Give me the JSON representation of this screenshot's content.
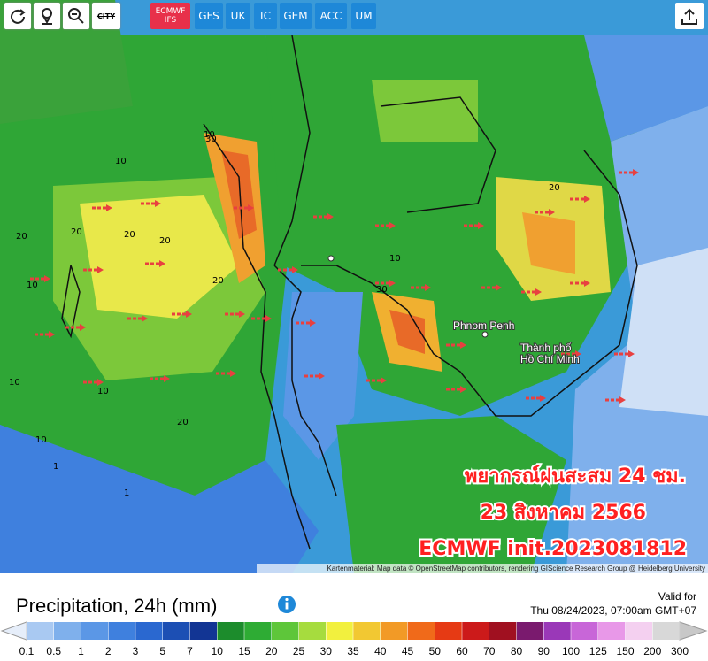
{
  "toolbar": {
    "city_button": "CITY",
    "models": [
      "ECMWF IFS",
      "GFS",
      "UK",
      "IC",
      "GEM",
      "ACC",
      "UM"
    ]
  },
  "map": {
    "place_labels": [
      "Phnom Penh",
      "Thành phố",
      "Hồ Chí Minh"
    ],
    "contour_labels": [
      "10",
      "30",
      "10",
      "20",
      "20",
      "20",
      "20",
      "10",
      "30",
      "20",
      "10",
      "20",
      "10",
      "10",
      "1",
      "1",
      "10",
      "20"
    ],
    "overlay": [
      "พยากรณ์ฝนสะสม 24 ชม.",
      "23 สิงหาคม 2566",
      "ECMWF init.2023081812"
    ],
    "attribution": "Kartenmaterial: Map data © OpenStreetMap contributors, rendering GIScience Research Group @ Heidelberg University"
  },
  "legend": {
    "title": "Precipitation, 24h (mm)",
    "valid_label": "Valid for",
    "valid_time": "Thu 08/24/2023, 07:00am GMT+07",
    "scale": [
      0.1,
      0.5,
      1,
      2,
      3,
      5,
      7,
      10,
      15,
      20,
      25,
      30,
      35,
      40,
      45,
      50,
      60,
      70,
      80,
      90,
      100,
      125,
      150,
      200,
      300
    ],
    "colors": [
      "#a9c9f2",
      "#7fb0ec",
      "#5b97e6",
      "#3f80de",
      "#2a68d0",
      "#1c4fb4",
      "#123594",
      "#1c8c2c",
      "#2eac34",
      "#5ec63a",
      "#a6dc3e",
      "#f2f03e",
      "#f2c832",
      "#f29a26",
      "#f06a1a",
      "#e63a14",
      "#cc1a1a",
      "#a01020",
      "#7a1a6e",
      "#9a38b8",
      "#c866d8",
      "#e898e8",
      "#f4d0f0",
      "#d8d8d8"
    ]
  }
}
